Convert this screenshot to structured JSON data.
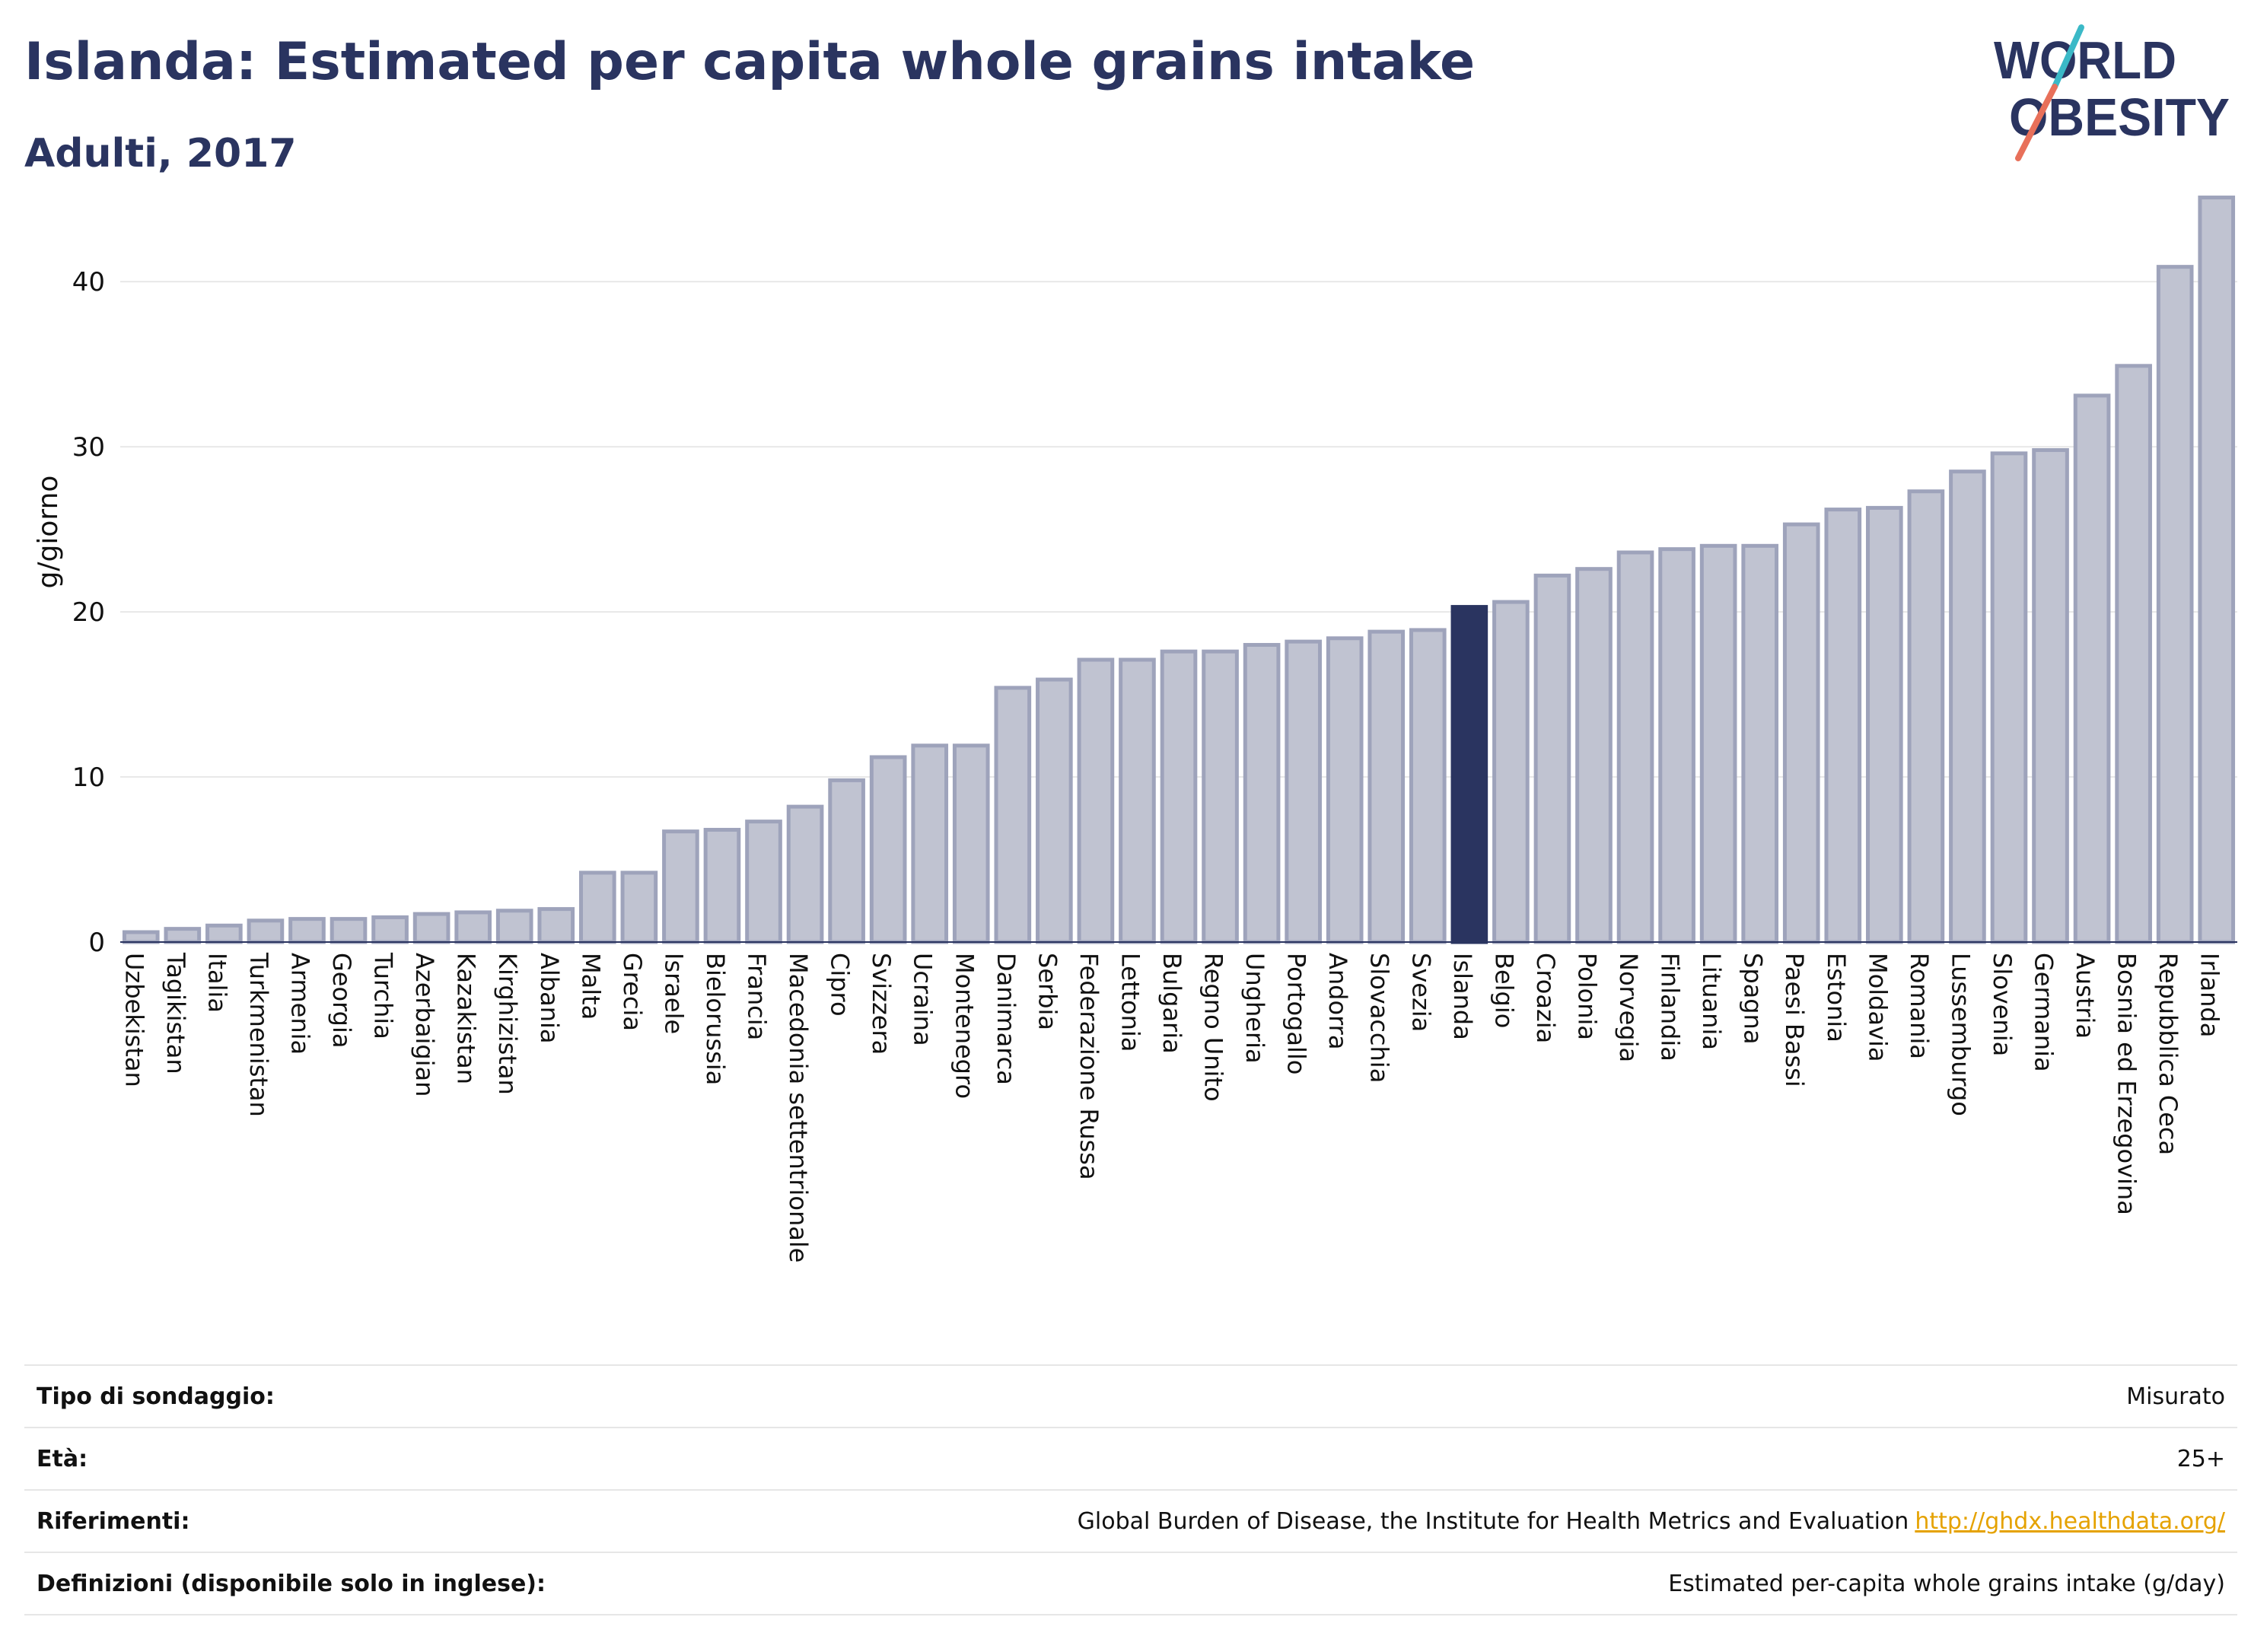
{
  "header": {
    "title": "Islanda: Estimated per capita whole grains intake",
    "subtitle": "Adulti, 2017"
  },
  "logo": {
    "line1": "WORLD",
    "line2": "OBESITY"
  },
  "chart_data": {
    "type": "bar",
    "ylabel": "g/giorno",
    "ylim": [
      0,
      46
    ],
    "yticks": [
      0,
      10,
      20,
      30,
      40
    ],
    "grid": true,
    "highlight": "Islanda",
    "colors": {
      "bar": "#c0c3d1",
      "bar_border": "#9ea3bb",
      "highlight": "#2a3460",
      "grid": "#e8e8e8"
    },
    "categories": [
      "Uzbekistan",
      "Tagikistan",
      "Italia",
      "Turkmenistan",
      "Armenia",
      "Georgia",
      "Turchia",
      "Azerbaigian",
      "Kazakistan",
      "Kirghizistan",
      "Albania",
      "Malta",
      "Grecia",
      "Israele",
      "Bielorussia",
      "Francia",
      "Macedonia settentrionale",
      "Cipro",
      "Svizzera",
      "Ucraina",
      "Montenegro",
      "Danimarca",
      "Serbia",
      "Federazione Russa",
      "Lettonia",
      "Bulgaria",
      "Regno Unito",
      "Ungheria",
      "Portogallo",
      "Andorra",
      "Slovacchia",
      "Svezia",
      "Islanda",
      "Belgio",
      "Croazia",
      "Polonia",
      "Norvegia",
      "Finlandia",
      "Lituania",
      "Spagna",
      "Paesi Bassi",
      "Estonia",
      "Moldavia",
      "Romania",
      "Lussemburgo",
      "Slovenia",
      "Germania",
      "Austria",
      "Bosnia ed Erzegovina",
      "Repubblica Ceca",
      "Irlanda"
    ],
    "values": [
      0.6,
      0.8,
      1.0,
      1.3,
      1.4,
      1.4,
      1.5,
      1.7,
      1.8,
      1.9,
      2.0,
      4.2,
      4.2,
      6.7,
      6.8,
      7.3,
      8.2,
      9.8,
      11.2,
      11.9,
      11.9,
      15.4,
      15.9,
      17.1,
      17.1,
      17.6,
      17.6,
      18.0,
      18.2,
      18.4,
      18.8,
      18.9,
      20.3,
      20.6,
      22.2,
      22.6,
      23.6,
      23.8,
      24.0,
      24.0,
      25.3,
      26.2,
      26.3,
      27.3,
      28.5,
      29.6,
      29.8,
      33.1,
      34.9,
      40.9,
      45.1
    ]
  },
  "info": [
    {
      "label": "Tipo di sondaggio:",
      "value": "Misurato"
    },
    {
      "label": "Età:",
      "value": "25+"
    },
    {
      "label": "Riferimenti:",
      "value": "Global Burden of Disease, the Institute for Health Metrics and Evaluation",
      "link": "http://ghdx.healthdata.org/"
    },
    {
      "label": "Definizioni (disponibile solo in inglese):",
      "value": "Estimated per-capita whole grains intake (g/day)"
    }
  ]
}
